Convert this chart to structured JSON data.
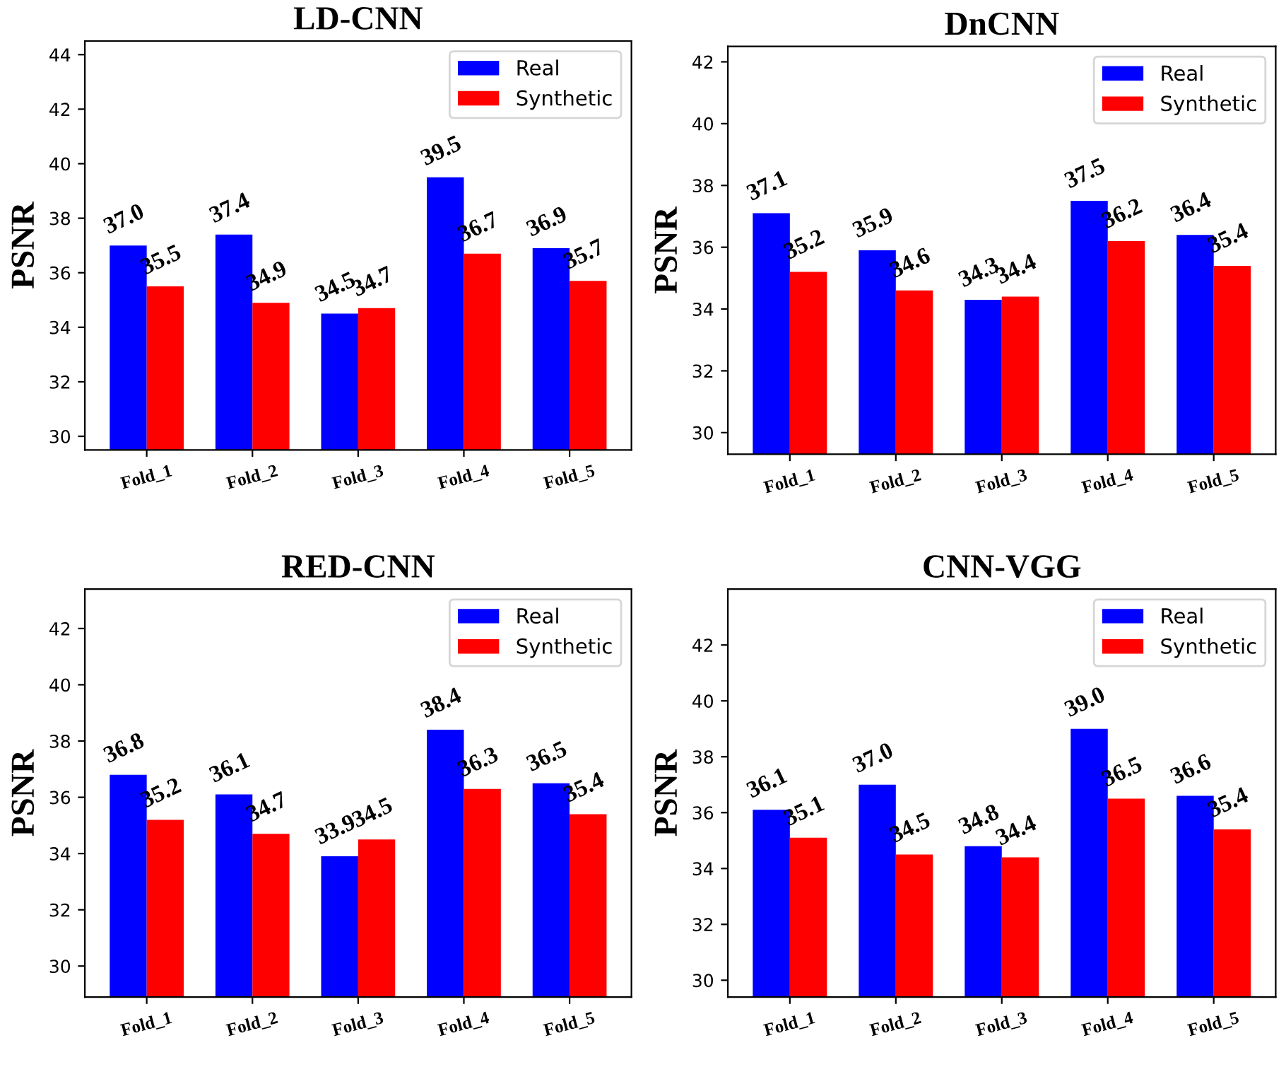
{
  "chart_data": [
    {
      "type": "bar",
      "title": "LD-CNN",
      "ylabel": "PSNR",
      "categories": [
        "Fold_1",
        "Fold_2",
        "Fold_3",
        "Fold_4",
        "Fold_5"
      ],
      "series": [
        {
          "name": "Real",
          "color": "#0000ff",
          "values": [
            37.0,
            37.4,
            34.5,
            39.5,
            36.9
          ],
          "value_labels": [
            "37.0",
            "37.4",
            "34.5",
            "39.5",
            "36.9"
          ]
        },
        {
          "name": "Synthetic",
          "color": "#ff0000",
          "values": [
            35.5,
            34.9,
            34.7,
            36.7,
            35.7
          ],
          "value_labels": [
            "35.5",
            "34.9",
            "34.7",
            "36.7",
            "35.7"
          ]
        }
      ],
      "ylim": [
        29.5,
        44.5
      ],
      "yticks": [
        30,
        32,
        34,
        36,
        38,
        40,
        42,
        44
      ],
      "legend": "top right"
    },
    {
      "type": "bar",
      "title": "DnCNN",
      "ylabel": "PSNR",
      "categories": [
        "Fold_1",
        "Fold_2",
        "Fold_3",
        "Fold_4",
        "Fold_5"
      ],
      "series": [
        {
          "name": "Real",
          "color": "#0000ff",
          "values": [
            37.1,
            35.9,
            34.3,
            37.5,
            36.4
          ],
          "value_labels": [
            "37.1",
            "35.9",
            "34.3",
            "37.5",
            "36.4"
          ]
        },
        {
          "name": "Synthetic",
          "color": "#ff0000",
          "values": [
            35.2,
            34.6,
            34.4,
            36.2,
            35.4
          ],
          "value_labels": [
            "35.2",
            "34.6",
            "34.4",
            "36.2",
            "35.4"
          ]
        }
      ],
      "ylim": [
        29.3,
        42.5
      ],
      "yticks": [
        30,
        32,
        34,
        36,
        38,
        40,
        42
      ],
      "legend": "top right"
    },
    {
      "type": "bar",
      "title": "RED-CNN",
      "ylabel": "PSNR",
      "categories": [
        "Fold_1",
        "Fold_2",
        "Fold_3",
        "Fold_4",
        "Fold_5"
      ],
      "series": [
        {
          "name": "Real",
          "color": "#0000ff",
          "values": [
            36.8,
            36.1,
            33.9,
            38.4,
            36.5
          ],
          "value_labels": [
            "36.8",
            "36.1",
            "33.9",
            "38.4",
            "36.5"
          ]
        },
        {
          "name": "Synthetic",
          "color": "#ff0000",
          "values": [
            35.2,
            34.7,
            34.5,
            36.3,
            35.4
          ],
          "value_labels": [
            "35.2",
            "34.7",
            "34.5",
            "36.3",
            "35.4"
          ]
        }
      ],
      "ylim": [
        28.9,
        43.4
      ],
      "yticks": [
        30,
        32,
        34,
        36,
        38,
        40,
        42
      ],
      "legend": "top right"
    },
    {
      "type": "bar",
      "title": "CNN-VGG",
      "ylabel": "PSNR",
      "categories": [
        "Fold_1",
        "Fold_2",
        "Fold_3",
        "Fold_4",
        "Fold_5"
      ],
      "series": [
        {
          "name": "Real",
          "color": "#0000ff",
          "values": [
            36.1,
            37.0,
            34.8,
            39.0,
            36.6
          ],
          "value_labels": [
            "36.1",
            "37.0",
            "34.8",
            "39.0",
            "36.6"
          ]
        },
        {
          "name": "Synthetic",
          "color": "#ff0000",
          "values": [
            35.1,
            34.5,
            34.4,
            36.5,
            35.4
          ],
          "value_labels": [
            "35.1",
            "34.5",
            "34.4",
            "36.5",
            "35.4"
          ]
        }
      ],
      "ylim": [
        29.4,
        44.0
      ],
      "yticks": [
        30,
        32,
        34,
        36,
        38,
        40,
        42
      ],
      "legend": "top right"
    }
  ]
}
